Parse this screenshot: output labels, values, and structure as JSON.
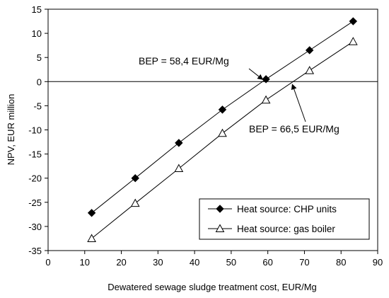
{
  "chart_data": {
    "type": "line",
    "xlabel": "Dewatered sewage sludge treatment cost, EUR/Mg",
    "ylabel": "NPV, EUR million",
    "xlim": [
      0,
      90
    ],
    "ylim": [
      -35,
      15
    ],
    "x_ticks": [
      0,
      10,
      20,
      30,
      40,
      50,
      60,
      70,
      80,
      90
    ],
    "y_ticks": [
      -35,
      -30,
      -25,
      -20,
      -15,
      -10,
      -5,
      0,
      5,
      10,
      15
    ],
    "grid": false,
    "legend_position": "bottom-right",
    "series": [
      {
        "name": "Heat source: CHP units",
        "marker": "filled-diamond",
        "color": "#000000",
        "x": [
          11.9,
          23.8,
          35.7,
          47.6,
          59.5,
          71.4,
          83.3
        ],
        "y": [
          -27.2,
          -20.0,
          -12.7,
          -5.8,
          0.5,
          6.5,
          12.5
        ]
      },
      {
        "name": "Heat source: gas boiler",
        "marker": "open-triangle",
        "color": "#000000",
        "x": [
          11.9,
          23.8,
          35.7,
          47.6,
          59.5,
          71.4,
          83.3
        ],
        "y": [
          -32.5,
          -25.2,
          -18.0,
          -10.7,
          -3.8,
          2.3,
          8.3
        ]
      }
    ],
    "annotations": [
      {
        "text": "BEP = 58,4 EUR/Mg",
        "x": 58.4,
        "y": 0
      },
      {
        "text": "BEP = 66,5 EUR/Mg",
        "x": 66.5,
        "y": 0
      }
    ]
  }
}
